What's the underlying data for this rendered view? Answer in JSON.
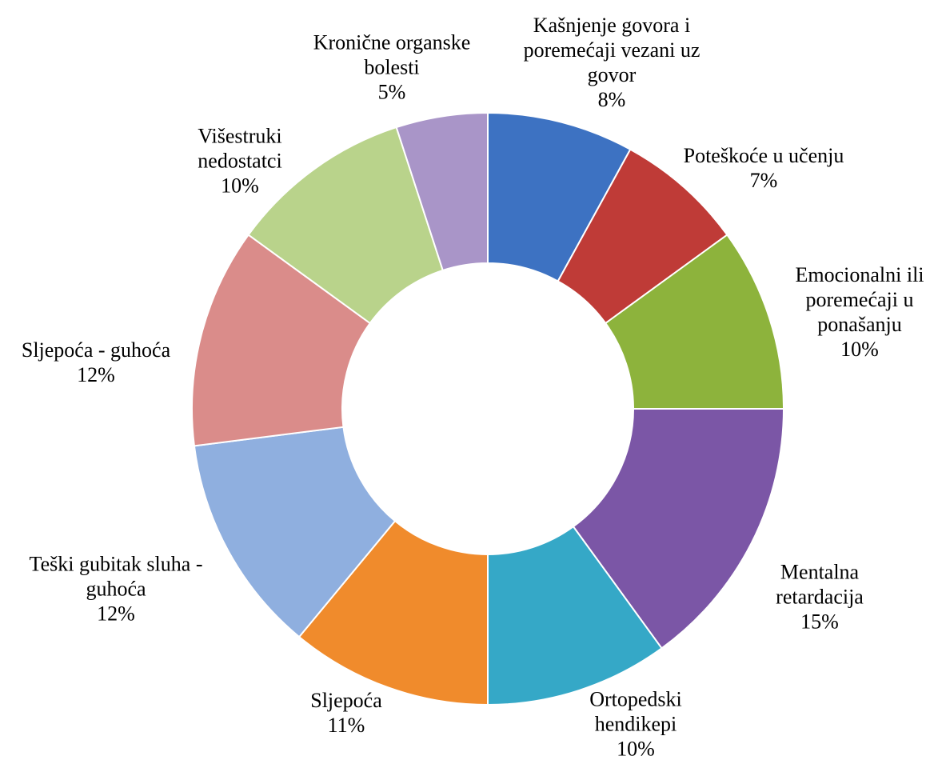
{
  "chart_data": {
    "type": "donut",
    "categories": [
      "Kašnjenje govora i poremećaji vezani uz govor",
      "Poteškoće u učenju",
      "Emocionalni ili poremećaji u ponašanju",
      "Mentalna retardacija",
      "Ortopedski hendikepi",
      "Sljepoća",
      "Teški gubitak sluha - guhoća",
      "Sljepoća - guhoća",
      "Višestruki nedostatci",
      "Kronične organske bolesti"
    ],
    "values": [
      8,
      7,
      10,
      15,
      10,
      11,
      12,
      12,
      10,
      5
    ],
    "value_labels": [
      "8%",
      "7%",
      "10%",
      "15%",
      "10%",
      "11%",
      "12%",
      "12%",
      "10%",
      "5%"
    ],
    "colors": [
      "#3d72c2",
      "#bf3b37",
      "#8db33c",
      "#7b56a6",
      "#35a8c7",
      "#f08b2c",
      "#8fafdf",
      "#da8c8a",
      "#b9d38b",
      "#a995c8"
    ]
  }
}
